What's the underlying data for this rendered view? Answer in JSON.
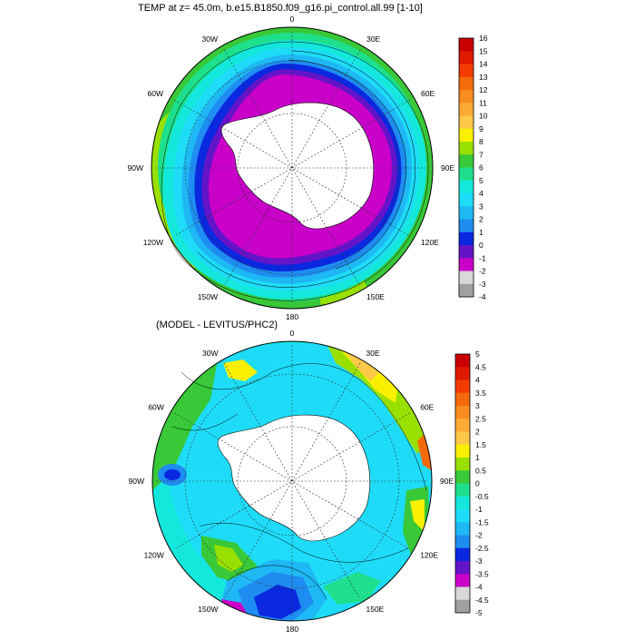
{
  "panels": [
    {
      "title": "TEMP at z=  45.0m, b.e15.B1850.f09_g16.pi_control.all.99 [1-10]",
      "longitude_labels": [
        "0",
        "30E",
        "60E",
        "90E",
        "120E",
        "150E",
        "180",
        "150W",
        "120W",
        "90W",
        "60W",
        "30W"
      ],
      "colorbar": {
        "labels": [
          "16",
          "15",
          "14",
          "13",
          "12",
          "11",
          "10",
          "9",
          "8",
          "7",
          "6",
          "5",
          "4",
          "3",
          "2",
          "1",
          "0",
          "-1",
          "-2",
          "-3",
          "-4"
        ],
        "colors": [
          "#c80000",
          "#e01a00",
          "#f43c00",
          "#f46a0a",
          "#f88c1e",
          "#fcaa34",
          "#fcc848",
          "#f8f000",
          "#98e000",
          "#38c838",
          "#1ee08c",
          "#14e8dc",
          "#1edcf8",
          "#1eb8f4",
          "#1e8cf0",
          "#0a28e0",
          "#6414c8",
          "#c800c8",
          "#d8d8d8",
          "#a0a0a0"
        ]
      }
    },
    {
      "title": "(MODEL - LEVITUS/PHC2)",
      "longitude_labels": [
        "0",
        "30E",
        "60E",
        "90E",
        "120E",
        "150E",
        "180",
        "150W",
        "120W",
        "90W",
        "60W",
        "30W"
      ],
      "colorbar": {
        "labels": [
          "5",
          "4.5",
          "4",
          "3.5",
          "3",
          "2.5",
          "2",
          "1.5",
          "1",
          "0.5",
          "0",
          "-0.5",
          "-1",
          "-1.5",
          "-2",
          "-2.5",
          "-3",
          "-3.5",
          "-4",
          "-4.5",
          "-5"
        ],
        "colors": [
          "#c80000",
          "#e01a00",
          "#f43c00",
          "#f46a0a",
          "#f88c1e",
          "#fcaa34",
          "#fcc848",
          "#f8f000",
          "#98e000",
          "#38c838",
          "#1ee08c",
          "#14e8dc",
          "#1edcf8",
          "#1eb8f4",
          "#1e8cf0",
          "#0a28e0",
          "#6414c8",
          "#c800c8",
          "#d8d8d8",
          "#a0a0a0"
        ]
      }
    }
  ],
  "chart_data": [
    {
      "type": "heatmap",
      "projection": "south-polar-stereographic",
      "title": "TEMP at z=  45.0m, b.e15.B1850.f09_g16.pi_control.all.99 [1-10]",
      "colorbar_range": [
        -4,
        16
      ],
      "colorbar_step": 1,
      "longitude_labels": [
        "0",
        "30E",
        "60E",
        "90E",
        "120E",
        "150E",
        "180",
        "150W",
        "120W",
        "90W",
        "60W",
        "30W"
      ]
    },
    {
      "type": "heatmap",
      "projection": "south-polar-stereographic",
      "title": "(MODEL - LEVITUS/PHC2)",
      "colorbar_range": [
        -5,
        5
      ],
      "colorbar_step": 0.5,
      "longitude_labels": [
        "0",
        "30E",
        "60E",
        "90E",
        "120E",
        "150E",
        "180",
        "150W",
        "120W",
        "90W",
        "60W",
        "30W"
      ]
    }
  ]
}
